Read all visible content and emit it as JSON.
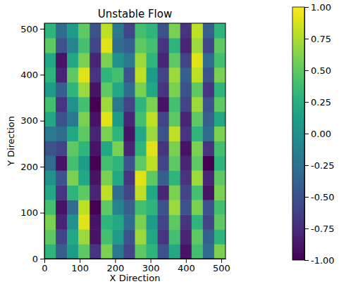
{
  "chart_data": {
    "type": "heatmap",
    "title": "Unstable Flow",
    "x_label": "X Direction",
    "y_label": "Y Direction",
    "color": "viridis",
    "xlim": [
      0,
      512
    ],
    "ylim": [
      0,
      512
    ],
    "xticks": [
      0,
      100,
      200,
      300,
      400,
      500
    ],
    "yticks": [
      0,
      100,
      200,
      300,
      400,
      500
    ],
    "x": [
      16,
      48,
      80,
      112,
      144,
      176,
      208,
      240,
      272,
      304,
      336,
      368,
      400,
      432,
      464,
      496
    ],
    "y": [
      16,
      48,
      80,
      112,
      144,
      176,
      208,
      240,
      272,
      304,
      336,
      368,
      400,
      432,
      464,
      496
    ],
    "z": [
      [
        0.3,
        -0.4,
        0.1,
        0.5,
        -0.7,
        0.6,
        -0.2,
        -0.6,
        0.5,
        0.3,
        -0.5,
        0.2,
        -0.9,
        0.4,
        -0.3,
        0.6
      ],
      [
        0.5,
        -0.6,
        0.2,
        0.7,
        -0.9,
        0.4,
        0.1,
        -0.5,
        0.7,
        0.2,
        -0.7,
        0.4,
        -0.8,
        0.5,
        -0.4,
        0.3
      ],
      [
        0.6,
        -0.8,
        0.0,
        0.9,
        -0.9,
        0.3,
        0.2,
        -0.3,
        0.6,
        0.1,
        -0.6,
        0.5,
        -0.7,
        0.3,
        -0.6,
        0.5
      ],
      [
        0.4,
        -0.9,
        -0.3,
        0.8,
        -1.0,
        0.5,
        -0.1,
        -0.4,
        0.4,
        0.3,
        -0.5,
        0.7,
        -0.5,
        0.6,
        -0.5,
        0.4
      ],
      [
        0.2,
        -0.7,
        0.3,
        0.5,
        -0.8,
        0.8,
        -0.3,
        -0.6,
        0.8,
        0.2,
        -0.8,
        0.6,
        -0.6,
        0.4,
        -0.9,
        0.6
      ],
      [
        0.0,
        -0.5,
        0.6,
        0.2,
        -0.9,
        0.6,
        0.2,
        -0.7,
        0.9,
        0.5,
        -0.4,
        0.3,
        -0.7,
        0.7,
        -0.8,
        0.5
      ],
      [
        -0.3,
        -0.9,
        0.4,
        0.1,
        -1.0,
        0.4,
        0.3,
        -0.5,
        0.5,
        0.8,
        -0.6,
        0.5,
        -0.8,
        0.5,
        -1.0,
        0.3
      ],
      [
        -0.5,
        -0.6,
        0.5,
        0.3,
        -0.9,
        0.2,
        0.6,
        -0.8,
        0.3,
        0.9,
        -0.7,
        0.6,
        -0.9,
        0.6,
        -0.7,
        0.4
      ],
      [
        -0.2,
        -0.3,
        0.2,
        0.5,
        -0.8,
        0.6,
        0.3,
        -0.9,
        0.2,
        0.7,
        -0.5,
        0.8,
        -0.7,
        0.3,
        -0.3,
        0.6
      ],
      [
        0.2,
        -0.5,
        -0.2,
        0.6,
        -0.9,
        0.9,
        0.1,
        -0.8,
        0.4,
        0.8,
        -0.6,
        0.5,
        -0.8,
        0.5,
        -0.4,
        0.2
      ],
      [
        0.4,
        -0.7,
        0.0,
        0.4,
        -1.0,
        0.7,
        -0.2,
        -0.6,
        0.3,
        0.6,
        -0.9,
        0.4,
        -0.6,
        0.7,
        -0.5,
        0.5
      ],
      [
        0.1,
        -0.4,
        0.3,
        0.7,
        -0.9,
        0.5,
        0.2,
        -0.3,
        0.6,
        0.2,
        -0.7,
        0.6,
        -0.5,
        0.5,
        -0.7,
        0.3
      ],
      [
        0.3,
        -0.8,
        0.5,
        0.9,
        -0.7,
        0.3,
        0.4,
        -0.5,
        0.8,
        0.1,
        -0.6,
        0.7,
        -0.4,
        0.8,
        -0.5,
        0.6
      ],
      [
        0.2,
        -0.9,
        0.2,
        0.6,
        -0.8,
        0.6,
        0.0,
        -0.2,
        0.7,
        0.3,
        -0.8,
        0.5,
        -0.6,
        0.9,
        -0.3,
        0.4
      ],
      [
        0.5,
        -0.5,
        -0.1,
        0.4,
        -0.6,
        0.9,
        -0.3,
        -0.4,
        0.5,
        0.4,
        -0.7,
        0.3,
        -0.8,
        0.7,
        -0.6,
        0.5
      ],
      [
        0.3,
        -0.3,
        0.1,
        0.5,
        -0.5,
        0.8,
        -0.2,
        -0.6,
        0.4,
        0.3,
        -0.5,
        0.6,
        -0.7,
        0.8,
        -0.4,
        0.3
      ]
    ],
    "zlim": [
      -1,
      1
    ],
    "zticks": [
      {
        "value": -1,
        "label": "-1.00"
      },
      {
        "value": -0.75,
        "label": "-0.75"
      },
      {
        "value": -0.5,
        "label": "-0.50"
      },
      {
        "value": -0.25,
        "label": "-0.25"
      },
      {
        "value": 0,
        "label": "0.00"
      },
      {
        "value": 0.25,
        "label": "0.25"
      },
      {
        "value": 0.5,
        "label": "0.50"
      },
      {
        "value": 0.75,
        "label": "0.75"
      },
      {
        "value": 1,
        "label": "1.00"
      }
    ]
  }
}
